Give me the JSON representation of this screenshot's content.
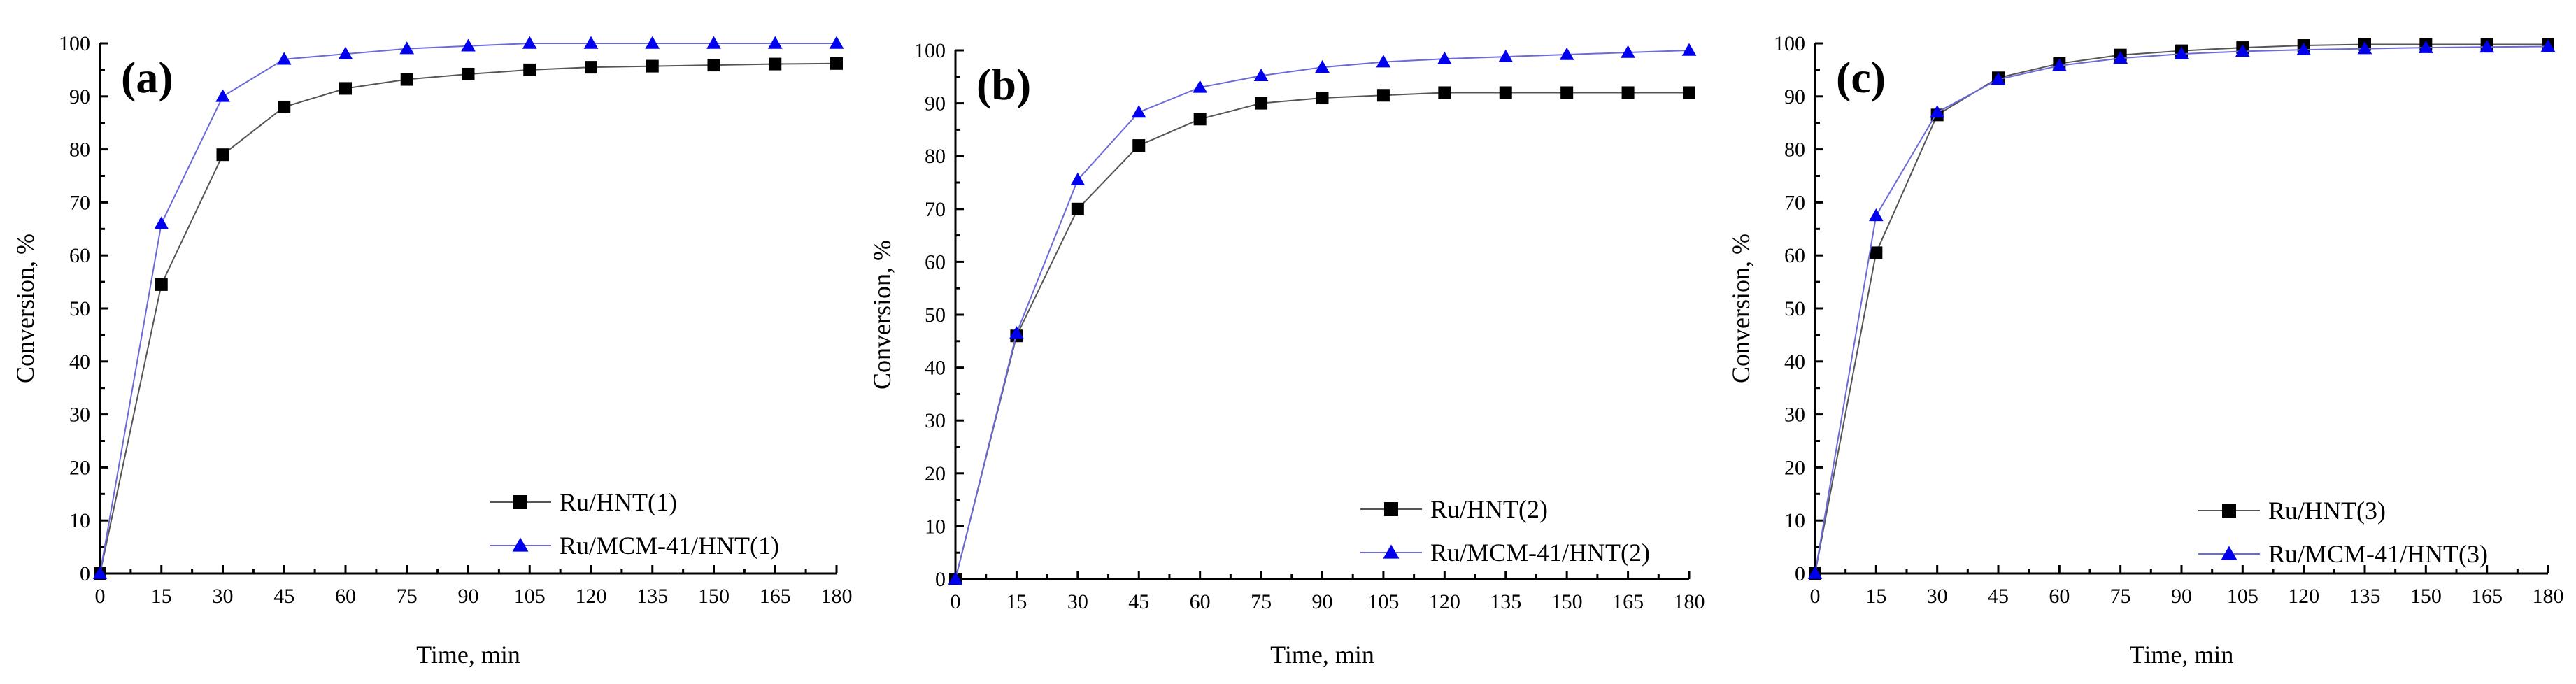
{
  "colors": {
    "series1": "#000000",
    "series1_line": "#555555",
    "series2_marker": "#0000ee",
    "series2_line": "#6b6bd8",
    "axes": "#000000"
  },
  "chart_data": [
    {
      "type": "line",
      "panel_label": "(a)",
      "xlabel": "Time, min",
      "ylabel": "Conversion, %",
      "xlim": [
        0,
        180
      ],
      "ylim": [
        0,
        100
      ],
      "xticks": [
        0,
        15,
        30,
        45,
        60,
        75,
        90,
        105,
        120,
        135,
        150,
        165,
        180
      ],
      "yticks": [
        0,
        10,
        20,
        30,
        40,
        50,
        60,
        70,
        80,
        90,
        100
      ],
      "legend_position": "bottom-right",
      "x": [
        0,
        15,
        30,
        45,
        60,
        75,
        90,
        105,
        120,
        135,
        150,
        165,
        180
      ],
      "series": [
        {
          "name": "Ru/HNT(1)",
          "marker": "square",
          "values": [
            0,
            54.5,
            79,
            88,
            91.5,
            93.2,
            94.2,
            95,
            95.5,
            95.7,
            95.9,
            96.1,
            96.2
          ]
        },
        {
          "name": "Ru/MCM-41/HNT(1)",
          "marker": "triangle",
          "values": [
            0,
            66,
            90,
            97,
            98,
            99,
            99.5,
            100,
            100,
            100,
            100,
            100,
            100
          ]
        }
      ]
    },
    {
      "type": "line",
      "panel_label": "(b)",
      "xlabel": "Time, min",
      "ylabel": "Conversion, %",
      "xlim": [
        0,
        180
      ],
      "ylim": [
        0,
        100
      ],
      "xticks": [
        0,
        15,
        30,
        45,
        60,
        75,
        90,
        105,
        120,
        135,
        150,
        165,
        180
      ],
      "yticks": [
        0,
        10,
        20,
        30,
        40,
        50,
        60,
        70,
        80,
        90,
        100
      ],
      "legend_position": "bottom-right",
      "x": [
        0,
        15,
        30,
        45,
        60,
        75,
        90,
        105,
        120,
        135,
        150,
        165,
        180
      ],
      "series": [
        {
          "name": "Ru/HNT(2)",
          "marker": "square",
          "values": [
            0,
            46,
            70,
            82,
            87,
            90,
            91,
            91.5,
            92,
            92,
            92,
            92,
            92
          ]
        },
        {
          "name": "Ru/MCM-41/HNT(2)",
          "marker": "triangle",
          "values": [
            0,
            46.5,
            75.5,
            88.3,
            93,
            95.2,
            96.8,
            97.8,
            98.4,
            98.8,
            99.2,
            99.6,
            100
          ]
        }
      ]
    },
    {
      "type": "line",
      "panel_label": "(c)",
      "xlabel": "Time, min",
      "ylabel": "Conversion, %",
      "xlim": [
        0,
        180
      ],
      "ylim": [
        0,
        100
      ],
      "xticks": [
        0,
        15,
        30,
        45,
        60,
        75,
        90,
        105,
        120,
        135,
        150,
        165,
        180
      ],
      "yticks": [
        0,
        10,
        20,
        30,
        40,
        50,
        60,
        70,
        80,
        90,
        100
      ],
      "legend_position": "bottom-right",
      "x": [
        0,
        15,
        30,
        45,
        60,
        75,
        90,
        105,
        120,
        135,
        150,
        165,
        180
      ],
      "series": [
        {
          "name": "Ru/HNT(3)",
          "marker": "square",
          "values": [
            0,
            60.5,
            86.5,
            93.5,
            96.2,
            97.8,
            98.6,
            99.2,
            99.6,
            99.8,
            99.8,
            99.8,
            99.8
          ]
        },
        {
          "name": "Ru/MCM-41/HNT(3)",
          "marker": "triangle",
          "values": [
            0,
            67.5,
            87,
            93.2,
            95.8,
            97.2,
            98,
            98.5,
            98.8,
            99,
            99.2,
            99.3,
            99.4
          ]
        }
      ]
    }
  ]
}
